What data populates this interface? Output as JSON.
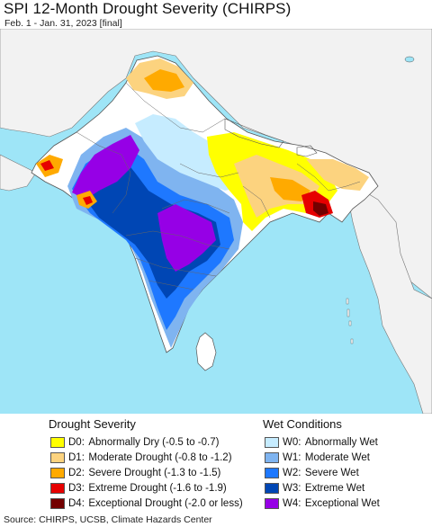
{
  "header": {
    "title": "SPI 12-Month Drought Severity (CHIRPS)",
    "subtitle": "Feb. 1 - Jan. 31, 2023 [final]"
  },
  "legend": {
    "drought_title": "Drought Severity",
    "wet_title": "Wet Conditions",
    "drought": [
      {
        "code": "D0:",
        "label": "Abnormally Dry (-0.5 to -0.7)",
        "color": "#ffff00"
      },
      {
        "code": "D1:",
        "label": "Moderate Drought (-0.8 to -1.2)",
        "color": "#fcd37f"
      },
      {
        "code": "D2:",
        "label": "Severe Drought (-1.3 to -1.5)",
        "color": "#ffaa00"
      },
      {
        "code": "D3:",
        "label": "Extreme Drought (-1.6 to -1.9)",
        "color": "#e60000"
      },
      {
        "code": "D4:",
        "label": "Exceptional Drought (-2.0 or less)",
        "color": "#730000"
      }
    ],
    "wet": [
      {
        "code": "W0:",
        "label": "Abnormally Wet",
        "color": "#c6ecff"
      },
      {
        "code": "W1:",
        "label": "Moderate Wet",
        "color": "#7fb4f0"
      },
      {
        "code": "W2:",
        "label": "Severe Wet",
        "color": "#1e78ff"
      },
      {
        "code": "W3:",
        "label": "Extreme Wet",
        "color": "#0046b4"
      },
      {
        "code": "W4:",
        "label": "Exceptional Wet",
        "color": "#9600e6"
      }
    ]
  },
  "footer": {
    "source": "Source: CHIRPS, UCSB, Climate Hazards Center"
  },
  "map": {
    "ocean_color": "#9ee5f7",
    "land_color": "#ffffff",
    "outside_land_color": "#f2f2f2"
  }
}
